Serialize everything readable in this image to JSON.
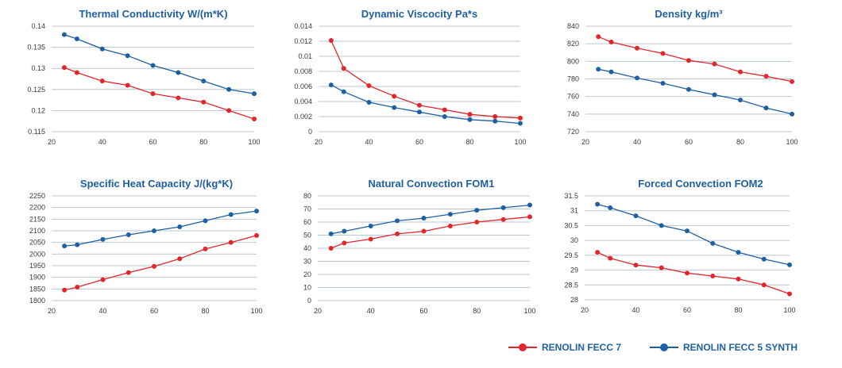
{
  "legend": [
    {
      "label": "RENOLIN FECC 7",
      "color": "#e2262b"
    },
    {
      "label": "RENOLIN FECC 5 SYNTH",
      "color": "#1f5fa3"
    }
  ],
  "chart_data": [
    {
      "type": "line",
      "title": "Thermal Conductivity W/(m*K)",
      "xlim": [
        20,
        100
      ],
      "xticks": [
        20,
        40,
        60,
        80,
        100
      ],
      "ylim": [
        0.115,
        0.14
      ],
      "yticks": [
        "0.115",
        "0.12",
        "0.125",
        "0.13",
        "0.135",
        "0.14"
      ],
      "x": [
        25,
        30,
        40,
        50,
        60,
        70,
        80,
        90,
        100
      ],
      "series": [
        {
          "name": "RENOLIN FECC 7",
          "color": "#e2262b",
          "values": [
            0.1302,
            0.129,
            0.127,
            0.126,
            0.124,
            0.123,
            0.122,
            0.12,
            0.118
          ]
        },
        {
          "name": "RENOLIN FECC 5 SYNTH",
          "color": "#1f5fa3",
          "values": [
            0.138,
            0.137,
            0.1346,
            0.133,
            0.1307,
            0.129,
            0.127,
            0.125,
            0.124
          ]
        }
      ]
    },
    {
      "type": "line",
      "title": "Dynamic Viscocity Pa*s",
      "xlim": [
        20,
        100
      ],
      "xticks": [
        20,
        40,
        60,
        80,
        100
      ],
      "ylim": [
        0,
        0.014
      ],
      "yticks": [
        "0",
        "0.002",
        "0.004",
        "0.006",
        "0.008",
        "0.01",
        "0.012",
        "0.014"
      ],
      "x": [
        25,
        30,
        40,
        50,
        60,
        70,
        80,
        90,
        100
      ],
      "series": [
        {
          "name": "RENOLIN FECC 7",
          "color": "#e2262b",
          "values": [
            0.0121,
            0.0084,
            0.0061,
            0.0047,
            0.0035,
            0.0029,
            0.0023,
            0.002,
            0.0018
          ]
        },
        {
          "name": "RENOLIN FECC 5 SYNTH",
          "color": "#1f5fa3",
          "values": [
            0.0062,
            0.0053,
            0.0039,
            0.0032,
            0.0026,
            0.002,
            0.0016,
            0.0014,
            0.0011
          ]
        }
      ]
    },
    {
      "type": "line",
      "title": "Density kg/m³",
      "xlim": [
        20,
        100
      ],
      "xticks": [
        20,
        40,
        60,
        80,
        100
      ],
      "ylim": [
        720,
        840
      ],
      "yticks": [
        "720",
        "740",
        "760",
        "780",
        "800",
        "820",
        "840"
      ],
      "x": [
        25,
        30,
        40,
        50,
        60,
        70,
        80,
        90,
        100
      ],
      "series": [
        {
          "name": "RENOLIN FECC 7",
          "color": "#e2262b",
          "values": [
            828,
            822,
            815,
            809,
            801,
            797,
            788,
            783,
            777
          ]
        },
        {
          "name": "RENOLIN FECC 5 SYNTH",
          "color": "#1f5fa3",
          "values": [
            791,
            788,
            781,
            775,
            768,
            762,
            756,
            747,
            740
          ]
        }
      ]
    },
    {
      "type": "line",
      "title": "Specific Heat Capacity J/(kg*K)",
      "xlim": [
        20,
        100
      ],
      "xticks": [
        20,
        40,
        60,
        80,
        100
      ],
      "ylim": [
        1800,
        2250
      ],
      "yticks": [
        "1800",
        "1850",
        "1900",
        "1950",
        "2000",
        "2050",
        "2100",
        "2150",
        "2200",
        "2250"
      ],
      "x": [
        25,
        30,
        40,
        50,
        60,
        70,
        80,
        90,
        100
      ],
      "series": [
        {
          "name": "RENOLIN FECC 7",
          "color": "#e2262b",
          "values": [
            1845,
            1858,
            1890,
            1920,
            1947,
            1980,
            2022,
            2050,
            2080
          ]
        },
        {
          "name": "RENOLIN FECC 5 SYNTH",
          "color": "#1f5fa3",
          "values": [
            2035,
            2040,
            2063,
            2083,
            2100,
            2117,
            2143,
            2170,
            2185
          ]
        }
      ]
    },
    {
      "type": "line",
      "title": "Natural Convection FOM1",
      "xlim": [
        20,
        100
      ],
      "xticks": [
        20,
        40,
        60,
        80,
        100
      ],
      "ylim": [
        0,
        80
      ],
      "yticks": [
        "0",
        "10",
        "20",
        "30",
        "40",
        "50",
        "60",
        "70",
        "80"
      ],
      "x": [
        25,
        30,
        40,
        50,
        60,
        70,
        80,
        90,
        100
      ],
      "series": [
        {
          "name": "RENOLIN FECC 7",
          "color": "#e2262b",
          "values": [
            40,
            44,
            47,
            51,
            53,
            57,
            60,
            62,
            64
          ]
        },
        {
          "name": "RENOLIN FECC 5 SYNTH",
          "color": "#1f5fa3",
          "values": [
            51,
            53,
            57,
            61,
            63,
            66,
            69,
            71,
            73
          ]
        }
      ]
    },
    {
      "type": "line",
      "title": "Forced Convection FOM2",
      "xlim": [
        20,
        100
      ],
      "xticks": [
        20,
        40,
        60,
        80,
        100
      ],
      "ylim": [
        28,
        31.5
      ],
      "yticks": [
        "28",
        "28.5",
        "29",
        "29.5",
        "30",
        "30.5",
        "31",
        "31.5"
      ],
      "x": [
        25,
        30,
        40,
        50,
        60,
        70,
        80,
        90,
        100
      ],
      "series": [
        {
          "name": "RENOLIN FECC 7",
          "color": "#e2262b",
          "values": [
            29.6,
            29.4,
            29.17,
            29.08,
            28.9,
            28.8,
            28.7,
            28.5,
            28.2
          ]
        },
        {
          "name": "RENOLIN FECC 5 SYNTH",
          "color": "#1f5fa3",
          "values": [
            31.22,
            31.1,
            30.83,
            30.5,
            30.32,
            29.9,
            29.6,
            29.37,
            29.18
          ]
        }
      ]
    }
  ]
}
